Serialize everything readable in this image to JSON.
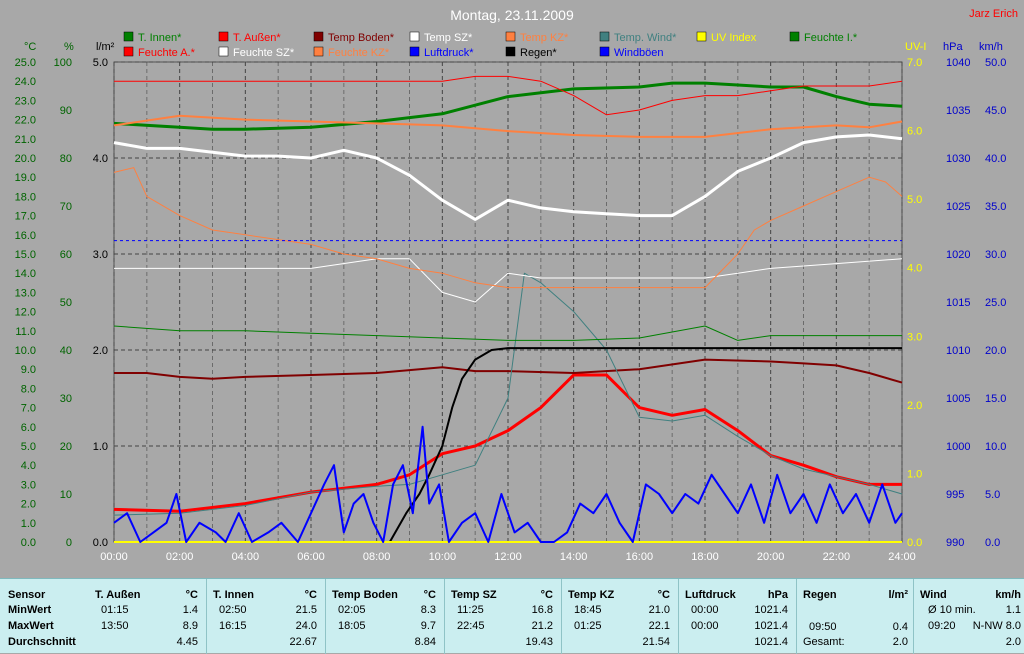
{
  "title": "Montag, 23.11.2009",
  "author": "Jarz Erich",
  "legend": [
    {
      "label": "T. Innen*",
      "color": "#008000"
    },
    {
      "label": "T. Außen*",
      "color": "#ff0000"
    },
    {
      "label": "Temp Boden*",
      "color": "#800000"
    },
    {
      "label": "Temp SZ*",
      "color": "#ffffff"
    },
    {
      "label": "Temp KZ*",
      "color": "#ff8040"
    },
    {
      "label": "Temp. Wind*",
      "color": "#408080"
    },
    {
      "label": "UV Index",
      "color": "#ffff00"
    },
    {
      "label": "Feuchte I.*",
      "color": "#008000"
    },
    {
      "label": "Feuchte A.*",
      "color": "#ff0000"
    },
    {
      "label": "Feuchte SZ*",
      "color": "#ffffff"
    },
    {
      "label": "Feuchte KZ*",
      "color": "#ff8040"
    },
    {
      "label": "Luftdruck*",
      "color": "#0000ff"
    },
    {
      "label": "Regen*",
      "color": "#000000"
    },
    {
      "label": "Windböen",
      "color": "#0000ff"
    }
  ],
  "units": {
    "temp": "°C",
    "hum": "%",
    "rain": "l/m²",
    "uv": "UV-I",
    "press": "hPa",
    "wind": "km/h"
  },
  "chart_data": {
    "type": "line",
    "x_ticks": [
      "00:00",
      "02:00",
      "04:00",
      "06:00",
      "08:00",
      "10:00",
      "12:00",
      "14:00",
      "16:00",
      "18:00",
      "20:00",
      "22:00",
      "24:00"
    ],
    "axes": {
      "temp": {
        "range": [
          0,
          25
        ],
        "ticks": [
          "0.0",
          "1.0",
          "2.0",
          "3.0",
          "4.0",
          "5.0",
          "6.0",
          "7.0",
          "8.0",
          "9.0",
          "10.0",
          "11.0",
          "12.0",
          "13.0",
          "14.0",
          "15.0",
          "16.0",
          "17.0",
          "18.0",
          "19.0",
          "20.0",
          "21.0",
          "22.0",
          "23.0",
          "24.0",
          "25.0"
        ]
      },
      "hum": {
        "range": [
          0,
          100
        ],
        "ticks": [
          "0",
          "10",
          "20",
          "30",
          "40",
          "50",
          "60",
          "70",
          "80",
          "90",
          "100"
        ]
      },
      "rain": {
        "range": [
          0,
          5
        ],
        "ticks": [
          "0.0",
          "1.0",
          "2.0",
          "3.0",
          "4.0",
          "5.0"
        ]
      },
      "uv": {
        "range": [
          0,
          7
        ],
        "ticks": [
          "0.0",
          "1.0",
          "2.0",
          "3.0",
          "4.0",
          "5.0",
          "6.0",
          "7.0"
        ]
      },
      "press": {
        "range": [
          990,
          1040
        ],
        "ticks": [
          "990",
          "995",
          "1000",
          "1005",
          "1010",
          "1015",
          "1020",
          "1025",
          "1030",
          "1035",
          "1040"
        ]
      },
      "wind": {
        "range": [
          0,
          50
        ],
        "ticks": [
          "0.0",
          "5.0",
          "10.0",
          "15.0",
          "20.0",
          "25.0",
          "30.0",
          "35.0",
          "40.0",
          "45.0",
          "50.0"
        ]
      }
    },
    "series": [
      {
        "name": "T. Innen*",
        "axis": "temp",
        "color": "#008000",
        "width": 3,
        "x": [
          0,
          2,
          3,
          4,
          6,
          8,
          10,
          12,
          14,
          16,
          17,
          18,
          19,
          20,
          21,
          22,
          23,
          24
        ],
        "y": [
          21.8,
          21.6,
          21.5,
          21.5,
          21.6,
          21.9,
          22.3,
          23.2,
          23.6,
          23.7,
          23.9,
          23.9,
          23.8,
          23.7,
          23.7,
          23.2,
          22.8,
          22.7
        ]
      },
      {
        "name": "T. Außen*",
        "axis": "temp",
        "color": "#ff0000",
        "width": 3,
        "x": [
          0,
          2,
          4,
          6,
          8,
          9,
          10,
          11,
          12,
          13,
          14,
          15,
          16,
          17,
          18,
          19,
          20,
          21,
          22,
          23,
          24
        ],
        "y": [
          1.7,
          1.6,
          2.0,
          2.6,
          3.0,
          3.5,
          4.6,
          5.0,
          5.8,
          7.0,
          8.7,
          8.7,
          7.0,
          6.6,
          6.9,
          5.8,
          4.5,
          4.0,
          3.4,
          3.0,
          3.0
        ]
      },
      {
        "name": "Temp Boden*",
        "axis": "temp",
        "color": "#800000",
        "width": 2,
        "x": [
          0,
          1,
          2,
          3,
          4,
          6,
          8,
          10,
          11,
          12,
          14,
          16,
          18,
          20,
          21,
          22,
          23,
          24
        ],
        "y": [
          8.8,
          8.8,
          8.6,
          8.5,
          8.6,
          8.7,
          8.8,
          9.1,
          8.9,
          8.9,
          8.8,
          9.0,
          9.5,
          9.4,
          9.3,
          9.2,
          8.8,
          8.3
        ]
      },
      {
        "name": "Temp SZ*",
        "axis": "temp",
        "color": "#ffffff",
        "width": 3,
        "x": [
          0,
          1,
          2,
          3,
          4,
          5,
          6,
          7,
          8,
          9,
          10,
          11,
          12,
          13,
          14,
          15,
          16,
          17,
          18,
          19,
          20,
          21,
          22,
          23,
          24
        ],
        "y": [
          20.8,
          20.5,
          20.5,
          20.3,
          20.1,
          20.1,
          20.0,
          20.4,
          20.0,
          19.1,
          17.8,
          16.8,
          17.8,
          17.4,
          17.2,
          17.1,
          17.0,
          17.0,
          18.0,
          19.3,
          20.0,
          20.8,
          21.1,
          21.2,
          21.0
        ]
      },
      {
        "name": "Temp KZ*",
        "axis": "temp",
        "color": "#ff8040",
        "width": 2,
        "x": [
          0,
          2,
          4,
          6,
          8,
          10,
          12,
          14,
          16,
          18,
          20,
          22,
          23,
          24
        ],
        "y": [
          21.7,
          22.2,
          22.0,
          21.9,
          21.8,
          21.7,
          21.4,
          21.2,
          21.1,
          21.1,
          21.5,
          21.7,
          21.6,
          21.9
        ]
      },
      {
        "name": "Temp. Wind*",
        "axis": "temp",
        "color": "#408080",
        "width": 1,
        "x": [
          0,
          2,
          4,
          6,
          8,
          9,
          10,
          11,
          12,
          12.5,
          13,
          14,
          15,
          16,
          17,
          18,
          19,
          20,
          21,
          22,
          23,
          24
        ],
        "y": [
          1.4,
          1.5,
          1.9,
          2.6,
          2.9,
          3.0,
          3.5,
          4.0,
          7.5,
          14.0,
          13.5,
          12.0,
          10.0,
          6.5,
          6.3,
          6.6,
          5.5,
          4.5,
          3.8,
          3.4,
          3.0,
          2.5
        ]
      },
      {
        "name": "Feuchte I.*",
        "axis": "hum",
        "color": "#008000",
        "width": 1,
        "x": [
          0,
          2,
          4,
          6,
          8,
          10,
          12,
          14,
          16,
          18,
          19,
          20,
          22,
          24
        ],
        "y": [
          45,
          44,
          44,
          43.5,
          43,
          42.5,
          42,
          42,
          42.5,
          45,
          42,
          43,
          43,
          43
        ]
      },
      {
        "name": "Feuchte A.*",
        "axis": "hum",
        "color": "#ff0000",
        "width": 1,
        "x": [
          0,
          2,
          4,
          6,
          8,
          10,
          11,
          12,
          13,
          14,
          15,
          16,
          17,
          18,
          19,
          20,
          21,
          22,
          23,
          24
        ],
        "y": [
          96,
          96,
          96,
          96,
          96,
          96,
          97,
          97,
          96,
          93,
          89,
          90,
          92,
          93,
          93,
          94,
          95,
          95,
          95,
          96
        ]
      },
      {
        "name": "Feuchte SZ*",
        "axis": "hum",
        "color": "#ffffff",
        "width": 1,
        "x": [
          0,
          2,
          4,
          6,
          8,
          9,
          10,
          11,
          12,
          13,
          14,
          16,
          18,
          19,
          20,
          22,
          24
        ],
        "y": [
          57,
          57,
          57,
          57,
          59,
          59,
          52,
          50,
          56,
          55,
          55,
          55,
          55,
          56,
          57,
          58,
          59
        ]
      },
      {
        "name": "Feuchte KZ*",
        "axis": "hum",
        "color": "#ff8040",
        "width": 1,
        "x": [
          0,
          0.6,
          1,
          2,
          3,
          4,
          5,
          6,
          7,
          8,
          9,
          10,
          11,
          12,
          14,
          16,
          18,
          19,
          19.5,
          20,
          21,
          22,
          23,
          23.5,
          24
        ],
        "y": [
          77,
          78,
          72,
          68,
          65,
          64,
          63,
          62,
          60,
          59,
          57,
          56,
          54,
          53,
          53,
          53,
          53,
          60,
          65,
          67,
          70,
          73,
          76,
          75,
          72
        ]
      },
      {
        "name": "Luftdruck*",
        "axis": "press",
        "color": "#0000ff",
        "width": 1,
        "dashed": true,
        "x": [
          0,
          24
        ],
        "y": [
          1021.4,
          1021.4
        ]
      },
      {
        "name": "Regen*",
        "axis": "rain",
        "color": "#000000",
        "width": 2,
        "x": [
          0,
          8.4,
          8.9,
          9.3,
          9.6,
          10,
          10.3,
          10.6,
          11,
          11.5,
          12,
          14,
          16,
          18,
          20,
          22,
          24
        ],
        "y": [
          0,
          0,
          0.3,
          0.5,
          0.7,
          1.0,
          1.4,
          1.7,
          1.9,
          2.0,
          2.02,
          2.02,
          2.02,
          2.02,
          2.02,
          2.02,
          2.02
        ]
      },
      {
        "name": "UV Index",
        "axis": "uv",
        "color": "#ffff00",
        "width": 2,
        "x": [
          0,
          24
        ],
        "y": [
          0,
          0
        ]
      },
      {
        "name": "Windböen",
        "axis": "wind",
        "color": "#0000ff",
        "width": 2,
        "x": [
          0,
          0.4,
          0.8,
          1.2,
          1.6,
          1.9,
          2.2,
          2.6,
          3.1,
          3.4,
          3.8,
          4.2,
          4.7,
          5.1,
          5.6,
          6.0,
          6.4,
          6.7,
          7.0,
          7.3,
          7.6,
          7.9,
          8.2,
          8.5,
          8.8,
          9.1,
          9.4,
          9.6,
          9.9,
          10.2,
          10.6,
          11.0,
          11.4,
          11.8,
          12.2,
          12.6,
          13.0,
          13.4,
          13.8,
          14.2,
          14.6,
          15.0,
          15.4,
          15.8,
          16.2,
          16.6,
          17.0,
          17.4,
          17.8,
          18.2,
          18.6,
          19.0,
          19.4,
          19.8,
          20.2,
          20.6,
          21.0,
          21.4,
          21.8,
          22.2,
          22.6,
          23.0,
          23.4,
          23.8,
          24
        ],
        "y": [
          2,
          3,
          0,
          1,
          2,
          5,
          0,
          2,
          1,
          0,
          3,
          0,
          1,
          2,
          0,
          3,
          6,
          8,
          1,
          4,
          5,
          2,
          0,
          6,
          8,
          3,
          12,
          4,
          6,
          0,
          2,
          3,
          0,
          5,
          1,
          2,
          0,
          0,
          1,
          4,
          3,
          5,
          2,
          0,
          6,
          5,
          3,
          5,
          4,
          7,
          5,
          3,
          6,
          2,
          7,
          3,
          5,
          2,
          6,
          3,
          5,
          2,
          6,
          2,
          3
        ]
      }
    ]
  },
  "stats": {
    "columns": [
      {
        "name": "Sensor",
        "unit": "",
        "min_time": "",
        "min_val": "",
        "max_time": "",
        "max_val": "",
        "avg": ""
      },
      {
        "name": "T. Außen",
        "unit": "°C",
        "min_time": "01:15",
        "min_val": "1.4",
        "max_time": "13:50",
        "max_val": "8.9",
        "avg": "4.45"
      },
      {
        "name": "T. Innen",
        "unit": "°C",
        "min_time": "02:50",
        "min_val": "21.5",
        "max_time": "16:15",
        "max_val": "24.0",
        "avg": "22.67"
      },
      {
        "name": "Temp Boden",
        "unit": "°C",
        "min_time": "02:05",
        "min_val": "8.3",
        "max_time": "18:05",
        "max_val": "9.7",
        "avg": "8.84"
      },
      {
        "name": "Temp SZ",
        "unit": "°C",
        "min_time": "11:25",
        "min_val": "16.8",
        "max_time": "22:45",
        "max_val": "21.2",
        "avg": "19.43"
      },
      {
        "name": "Temp KZ",
        "unit": "°C",
        "min_time": "18:45",
        "min_val": "21.0",
        "max_time": "01:25",
        "max_val": "22.1",
        "avg": "21.54"
      },
      {
        "name": "Luftdruck",
        "unit": "hPa",
        "min_time": "00:00",
        "min_val": "1021.4",
        "max_time": "00:00",
        "max_val": "1021.4",
        "avg": "1021.4"
      }
    ],
    "row_labels": [
      "MinWert",
      "MaxWert",
      "Durchschnitt"
    ],
    "regen": {
      "name": "Regen",
      "unit": "l/m²",
      "max_time": "09:50",
      "max_val": "0.4",
      "total_label": "Gesamt:",
      "total": "2.0"
    },
    "wind": {
      "name": "Wind",
      "unit": "km/h",
      "avg_label": "Ø 10 min.",
      "avg_val": "1.1",
      "max_time": "09:20",
      "max_val": "N-NW 8.0",
      "last": "2.0"
    }
  }
}
